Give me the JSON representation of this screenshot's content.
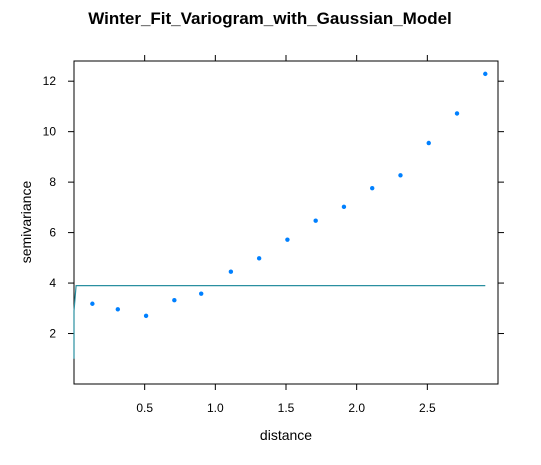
{
  "chart_data": {
    "type": "scatter",
    "title": "Winter_Fit_Variogram_with_Gaussian_Model",
    "xlabel": "distance",
    "ylabel": "semivariance",
    "xlim": [
      0,
      3.0
    ],
    "ylim": [
      0,
      12.8
    ],
    "x_ticks": [
      0.5,
      1.0,
      1.5,
      2.0,
      2.5
    ],
    "x_tick_labels": [
      "0.5",
      "1.0",
      "1.5",
      "2.0",
      "2.5"
    ],
    "y_ticks": [
      2,
      4,
      6,
      8,
      10,
      12
    ],
    "y_tick_labels": [
      "2",
      "4",
      "6",
      "8",
      "10",
      "12"
    ],
    "grid": false,
    "series": [
      {
        "kind": "points",
        "color": "#0080ff",
        "x": [
          0.13,
          0.31,
          0.51,
          0.71,
          0.9,
          1.11,
          1.31,
          1.51,
          1.71,
          1.91,
          2.11,
          2.31,
          2.51,
          2.71,
          2.91
        ],
        "y": [
          3.18,
          2.96,
          2.7,
          3.32,
          3.58,
          4.45,
          4.98,
          5.72,
          6.47,
          7.02,
          7.76,
          8.27,
          9.55,
          10.72,
          12.29
        ]
      },
      {
        "kind": "model-line",
        "color": "#2a8fa0",
        "x": [
          0.0,
          0.0,
          0.015,
          0.02,
          2.91
        ],
        "y": [
          1.0,
          2.9,
          3.9,
          3.9,
          3.9
        ]
      }
    ]
  }
}
